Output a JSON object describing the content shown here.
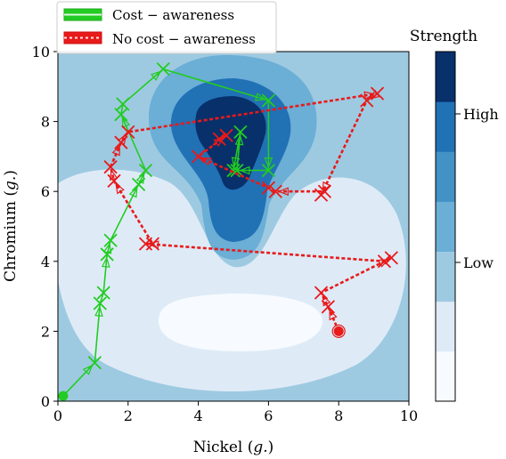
{
  "chart_data": {
    "type": "line",
    "xlabel": "Nickel (g.)",
    "ylabel": "Chromium (g.)",
    "xlim": [
      0,
      10
    ],
    "ylim": [
      0,
      10
    ],
    "xticks": [
      "0",
      "2",
      "4",
      "6",
      "8",
      "10"
    ],
    "yticks": [
      "0",
      "2",
      "4",
      "6",
      "8",
      "10"
    ],
    "legend": {
      "placement": "top-left",
      "entries": [
        "Cost − awareness",
        "No cost − awareness"
      ]
    },
    "colorbar": {
      "title": "Strength",
      "labels": [
        "High",
        "Low"
      ],
      "colors": [
        "#f7fbff",
        "#deebf7",
        "#9ecae1",
        "#6baed6",
        "#4292c6",
        "#2171b5",
        "#08306b"
      ]
    },
    "background": {
      "type": "contour",
      "base_color": "#9ecae1"
    },
    "series": [
      {
        "name": "Cost − awareness",
        "color": "#22cc22",
        "points": [
          [
            0.15,
            0.15
          ],
          [
            1.05,
            1.1
          ],
          [
            1.2,
            2.8
          ],
          [
            1.3,
            3.1
          ],
          [
            1.4,
            4.2
          ],
          [
            1.5,
            4.6
          ],
          [
            2.3,
            6.2
          ],
          [
            2.5,
            6.6
          ],
          [
            1.8,
            8.2
          ],
          [
            1.85,
            8.5
          ],
          [
            3.0,
            9.5
          ],
          [
            6.0,
            8.6
          ],
          [
            6.0,
            6.6
          ],
          [
            5.1,
            6.6
          ],
          [
            5.2,
            7.7
          ],
          [
            5.0,
            6.6
          ]
        ]
      },
      {
        "name": "No cost − awareness",
        "color": "#e81a1a",
        "points": [
          [
            8.0,
            2.0
          ],
          [
            7.7,
            2.7
          ],
          [
            7.5,
            3.1
          ],
          [
            9.5,
            4.1
          ],
          [
            9.3,
            4.0
          ],
          [
            2.5,
            4.5
          ],
          [
            2.7,
            4.5
          ],
          [
            1.6,
            6.3
          ],
          [
            1.5,
            6.7
          ],
          [
            1.8,
            7.4
          ],
          [
            2.0,
            7.7
          ],
          [
            9.1,
            8.8
          ],
          [
            8.8,
            8.6
          ],
          [
            7.5,
            5.9
          ],
          [
            7.6,
            6.0
          ],
          [
            6.2,
            6.0
          ],
          [
            6.0,
            6.1
          ],
          [
            4.0,
            7.0
          ],
          [
            4.8,
            7.6
          ],
          [
            4.6,
            7.5
          ]
        ]
      }
    ]
  }
}
